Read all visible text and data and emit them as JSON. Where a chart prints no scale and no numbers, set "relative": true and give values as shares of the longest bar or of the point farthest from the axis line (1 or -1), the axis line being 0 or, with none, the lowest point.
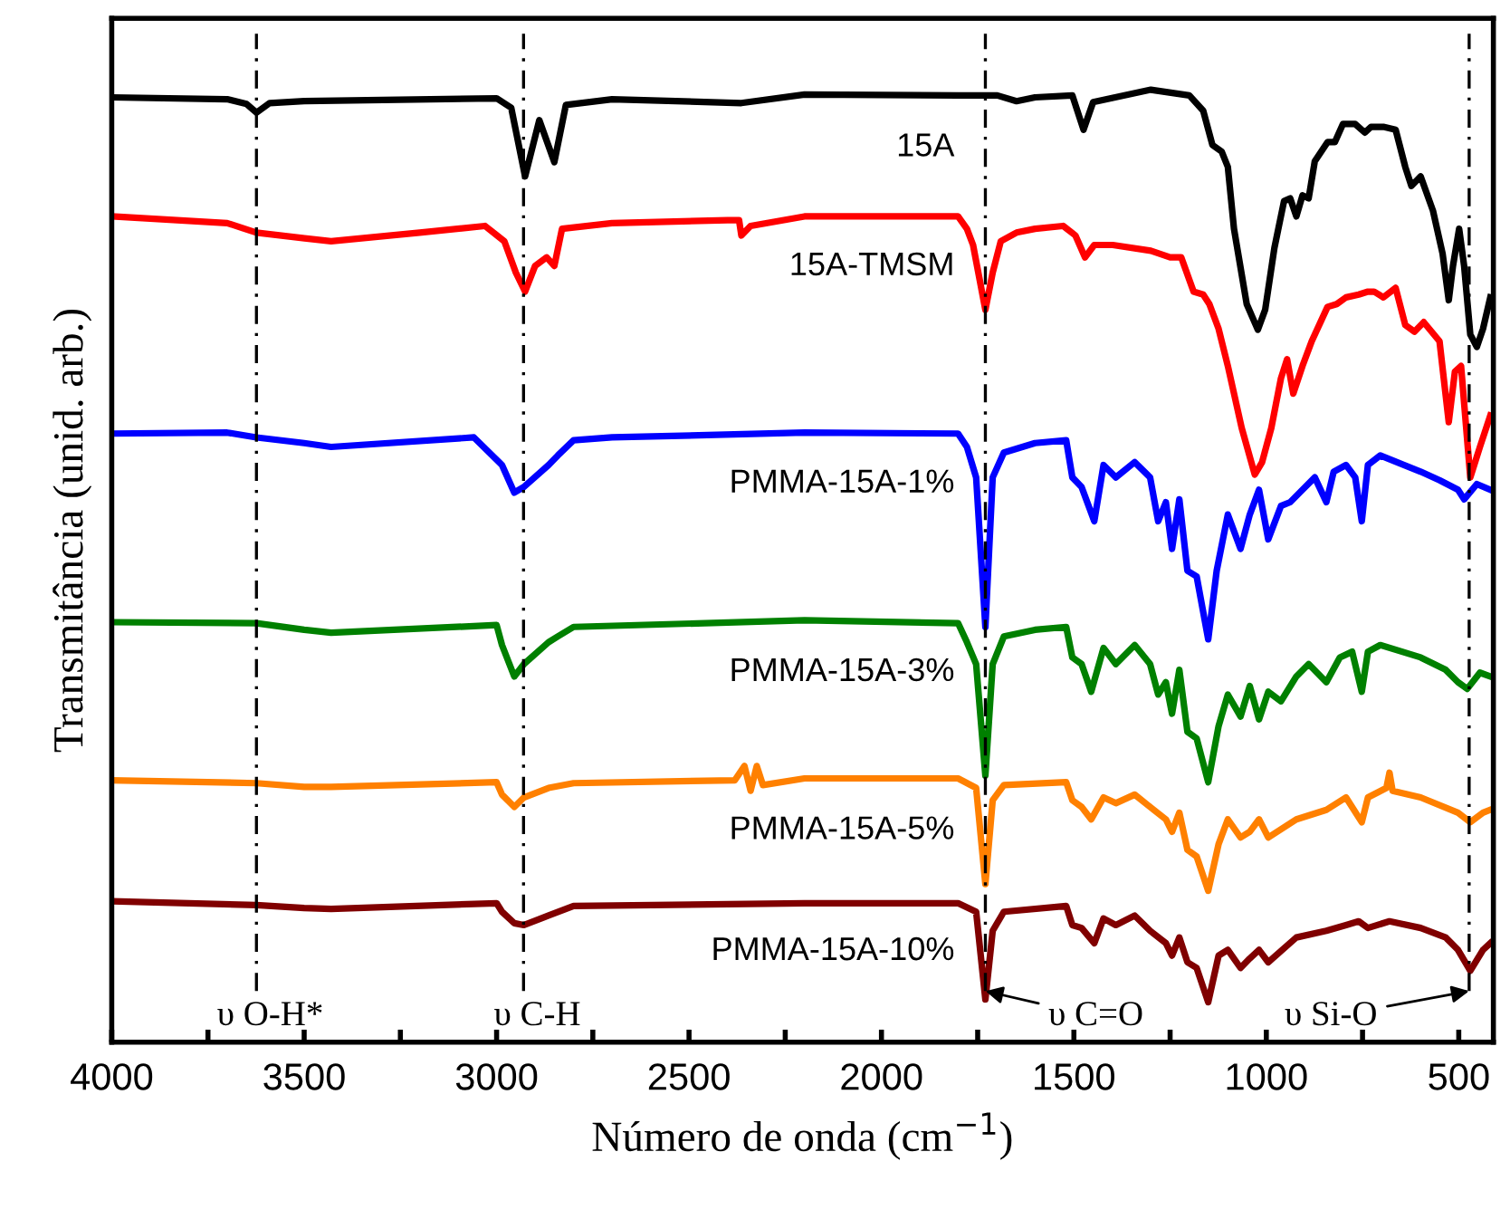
{
  "chart_data": {
    "type": "line",
    "relative": true,
    "xlabel": "Número de onda (cm$^{−1}$)",
    "ylabel": "Transmitância (unid. arb.)",
    "xlim": [
      4000,
      410
    ],
    "xticks": [
      4000,
      {
        "value": 3750,
        "label": null
      },
      3500,
      {
        "value": 3250,
        "label": null
      },
      3000,
      {
        "value": 2750,
        "label": null
      },
      2500,
      {
        "value": 2250,
        "label": null
      },
      2000,
      {
        "value": 1750,
        "label": null
      },
      1500,
      {
        "value": 1250,
        "label": null
      },
      1000,
      {
        "value": 750,
        "label": null
      },
      500
    ],
    "grid": false,
    "legend": false,
    "marker": "none",
    "line_style": "solid",
    "ref_lines": [
      {
        "axis": "x",
        "value": 3624,
        "label": "υ O-H*",
        "color": "#000000",
        "line_style": "dashed"
      },
      {
        "axis": "x",
        "value": 2930,
        "label": "υ C-H",
        "color": "#000000",
        "line_style": "dashed"
      },
      {
        "axis": "x",
        "value": 1730,
        "label": "υ C=O",
        "color": "#000000",
        "line_style": "dashed"
      },
      {
        "axis": "x",
        "value": 473,
        "label": "υ Si-O",
        "color": "#000000",
        "line_style": "dashed"
      }
    ],
    "series": [
      {
        "name": "15A",
        "color": "#000000",
        "x": [
          4000,
          3700,
          3650,
          3624,
          3590,
          3500,
          3000,
          2962,
          2926,
          2889,
          2850,
          2820,
          2700,
          2364,
          2200,
          1801,
          1699,
          1649,
          1601,
          1504,
          1475,
          1450,
          1300,
          1200,
          1164,
          1140,
          1116,
          1100,
          1084,
          1051,
          1022,
          1003,
          979,
          954,
          938,
          922,
          906,
          890,
          874,
          841,
          822,
          801,
          769,
          744,
          728,
          696,
          664,
          639,
          623,
          599,
          567,
          542,
          526,
          515,
          499,
          486,
          470,
          453,
          437,
          418
        ],
        "values": [
          0.992,
          0.99,
          0.985,
          0.976,
          0.986,
          0.988,
          0.991,
          0.981,
          0.909,
          0.968,
          0.924,
          0.984,
          0.99,
          0.986,
          0.995,
          0.994,
          0.994,
          0.988,
          0.992,
          0.994,
          0.958,
          0.987,
          1.0,
          0.994,
          0.978,
          0.942,
          0.935,
          0.919,
          0.854,
          0.775,
          0.748,
          0.769,
          0.834,
          0.883,
          0.886,
          0.867,
          0.889,
          0.886,
          0.925,
          0.945,
          0.945,
          0.964,
          0.964,
          0.955,
          0.961,
          0.961,
          0.958,
          0.919,
          0.899,
          0.909,
          0.873,
          0.828,
          0.779,
          0.815,
          0.854,
          0.815,
          0.743,
          0.73,
          0.749,
          0.782
        ]
      },
      {
        "name": "15A-TMSM",
        "color": "#ff0000",
        "x": [
          4000,
          3700,
          3624,
          3499,
          3430,
          3200,
          3030,
          2980,
          2950,
          2926,
          2900,
          2870,
          2850,
          2830,
          2700,
          2400,
          2370,
          2364,
          2340,
          2200,
          1801,
          1778,
          1762,
          1730,
          1711,
          1690,
          1649,
          1601,
          1528,
          1496,
          1471,
          1447,
          1399,
          1300,
          1250,
          1221,
          1189,
          1164,
          1148,
          1124,
          1100,
          1064,
          1030,
          1011,
          987,
          962,
          946,
          930,
          906,
          882,
          841,
          817,
          793,
          760,
          736,
          720,
          696,
          664,
          639,
          615,
          591,
          550,
          526,
          510,
          494,
          470,
          445,
          418
        ],
        "values": [
          0.867,
          0.86,
          0.85,
          0.844,
          0.841,
          0.85,
          0.857,
          0.841,
          0.808,
          0.788,
          0.815,
          0.824,
          0.815,
          0.854,
          0.86,
          0.863,
          0.863,
          0.847,
          0.857,
          0.867,
          0.867,
          0.854,
          0.837,
          0.769,
          0.808,
          0.841,
          0.85,
          0.854,
          0.857,
          0.847,
          0.824,
          0.837,
          0.837,
          0.831,
          0.824,
          0.824,
          0.788,
          0.785,
          0.775,
          0.749,
          0.71,
          0.645,
          0.596,
          0.609,
          0.645,
          0.697,
          0.717,
          0.681,
          0.71,
          0.736,
          0.772,
          0.775,
          0.782,
          0.785,
          0.788,
          0.788,
          0.782,
          0.792,
          0.753,
          0.746,
          0.756,
          0.736,
          0.651,
          0.704,
          0.71,
          0.593,
          0.625,
          0.658
        ]
      },
      {
        "name": "PMMA-15A-1%",
        "color": "#0000ff",
        "x": [
          4000,
          3700,
          3624,
          3500,
          3430,
          3059,
          2986,
          2954,
          2929,
          2865,
          2841,
          2800,
          2700,
          2200,
          1801,
          1778,
          1754,
          1730,
          1711,
          1682,
          1601,
          1520,
          1504,
          1480,
          1447,
          1423,
          1391,
          1342,
          1302,
          1281,
          1261,
          1245,
          1226,
          1205,
          1181,
          1151,
          1129,
          1100,
          1067,
          1043,
          1019,
          995,
          962,
          938,
          906,
          874,
          844,
          825,
          793,
          769,
          752,
          736,
          704,
          599,
          550,
          502,
          486,
          453,
          418
        ],
        "values": [
          0.639,
          0.64,
          0.635,
          0.629,
          0.625,
          0.635,
          0.606,
          0.577,
          0.583,
          0.606,
          0.616,
          0.632,
          0.635,
          0.64,
          0.639,
          0.625,
          0.593,
          0.436,
          0.593,
          0.619,
          0.629,
          0.632,
          0.593,
          0.583,
          0.547,
          0.606,
          0.593,
          0.609,
          0.593,
          0.547,
          0.567,
          0.518,
          0.57,
          0.495,
          0.489,
          0.423,
          0.495,
          0.554,
          0.518,
          0.554,
          0.58,
          0.528,
          0.563,
          0.567,
          0.58,
          0.593,
          0.567,
          0.599,
          0.606,
          0.593,
          0.547,
          0.606,
          0.616,
          0.599,
          0.59,
          0.58,
          0.57,
          0.586,
          0.58
        ]
      },
      {
        "name": "PMMA-15A-3%",
        "color": "#008000",
        "x": [
          4000,
          3624,
          3500,
          3430,
          3000,
          2986,
          2954,
          2929,
          2865,
          2841,
          2800,
          2200,
          1801,
          1778,
          1754,
          1730,
          1711,
          1682,
          1601,
          1520,
          1504,
          1480,
          1455,
          1423,
          1391,
          1342,
          1302,
          1281,
          1261,
          1245,
          1226,
          1205,
          1181,
          1151,
          1124,
          1100,
          1067,
          1043,
          1019,
          995,
          962,
          922,
          890,
          844,
          809,
          777,
          752,
          736,
          704,
          599,
          534,
          502,
          478,
          445,
          418
        ],
        "values": [
          0.441,
          0.44,
          0.433,
          0.43,
          0.438,
          0.417,
          0.384,
          0.397,
          0.42,
          0.426,
          0.436,
          0.443,
          0.44,
          0.42,
          0.397,
          0.28,
          0.397,
          0.426,
          0.433,
          0.436,
          0.404,
          0.397,
          0.368,
          0.414,
          0.397,
          0.417,
          0.397,
          0.365,
          0.378,
          0.345,
          0.391,
          0.326,
          0.319,
          0.273,
          0.332,
          0.365,
          0.342,
          0.374,
          0.339,
          0.368,
          0.358,
          0.384,
          0.397,
          0.378,
          0.404,
          0.41,
          0.368,
          0.41,
          0.417,
          0.404,
          0.391,
          0.378,
          0.371,
          0.388,
          0.384
        ]
      },
      {
        "name": "PMMA-15A-5%",
        "color": "#ff8000",
        "x": [
          4000,
          3624,
          3500,
          3430,
          3000,
          2986,
          2954,
          2929,
          2865,
          2800,
          2381,
          2356,
          2340,
          2324,
          2308,
          2200,
          1801,
          1754,
          1730,
          1711,
          1682,
          1520,
          1504,
          1480,
          1455,
          1423,
          1391,
          1342,
          1302,
          1261,
          1245,
          1226,
          1205,
          1181,
          1151,
          1124,
          1100,
          1067,
          1043,
          1019,
          995,
          922,
          844,
          793,
          752,
          736,
          688,
          680,
          672,
          599,
          502,
          470,
          437,
          418
        ],
        "values": [
          0.275,
          0.272,
          0.268,
          0.268,
          0.273,
          0.26,
          0.247,
          0.257,
          0.267,
          0.272,
          0.275,
          0.29,
          0.264,
          0.29,
          0.27,
          0.277,
          0.277,
          0.267,
          0.166,
          0.254,
          0.27,
          0.273,
          0.254,
          0.247,
          0.234,
          0.257,
          0.251,
          0.26,
          0.247,
          0.234,
          0.221,
          0.241,
          0.202,
          0.195,
          0.159,
          0.208,
          0.234,
          0.215,
          0.221,
          0.234,
          0.215,
          0.234,
          0.244,
          0.257,
          0.231,
          0.257,
          0.267,
          0.283,
          0.264,
          0.257,
          0.241,
          0.231,
          0.241,
          0.244
        ]
      },
      {
        "name": "PMMA-15A-10%",
        "color": "#800000",
        "x": [
          4000,
          3624,
          3500,
          3430,
          3000,
          2986,
          2954,
          2929,
          2865,
          2800,
          2200,
          1801,
          1754,
          1730,
          1711,
          1682,
          1520,
          1504,
          1480,
          1447,
          1423,
          1391,
          1342,
          1302,
          1261,
          1245,
          1226,
          1205,
          1181,
          1151,
          1124,
          1100,
          1067,
          1043,
          1019,
          995,
          922,
          844,
          793,
          760,
          736,
          680,
          599,
          534,
          502,
          470,
          437,
          418
        ],
        "values": [
          0.148,
          0.144,
          0.141,
          0.14,
          0.146,
          0.137,
          0.125,
          0.123,
          0.133,
          0.143,
          0.146,
          0.146,
          0.137,
          0.045,
          0.117,
          0.137,
          0.143,
          0.123,
          0.12,
          0.104,
          0.13,
          0.123,
          0.133,
          0.117,
          0.104,
          0.091,
          0.11,
          0.084,
          0.078,
          0.042,
          0.091,
          0.097,
          0.078,
          0.088,
          0.097,
          0.084,
          0.11,
          0.117,
          0.123,
          0.127,
          0.12,
          0.127,
          0.12,
          0.11,
          0.097,
          0.075,
          0.097,
          0.104
        ]
      }
    ]
  }
}
